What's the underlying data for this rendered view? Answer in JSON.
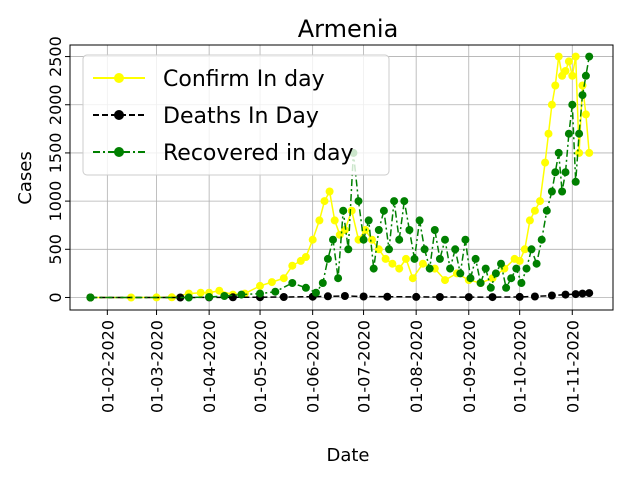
{
  "chart_data": {
    "type": "line",
    "title": "Armenia",
    "xlabel": "Date",
    "ylabel": "Cases",
    "x_tick_labels": [
      "01-02-2020",
      "01-03-2020",
      "01-04-2020",
      "01-05-2020",
      "01-06-2020",
      "01-07-2020",
      "01-08-2020",
      "01-09-2020",
      "01-10-2020",
      "01-11-2020"
    ],
    "x_tick_dates": [
      "2020-02-01",
      "2020-03-01",
      "2020-04-01",
      "2020-05-01",
      "2020-06-01",
      "2020-07-01",
      "2020-08-01",
      "2020-09-01",
      "2020-10-01",
      "2020-11-01"
    ],
    "y_ticks": [
      0,
      500,
      1000,
      1500,
      2000,
      2500
    ],
    "y_tick_labels": [
      "0",
      "500",
      "1000",
      "1500",
      "2000",
      "2500"
    ],
    "xlim": [
      "2020-01-10",
      "2020-11-25"
    ],
    "ylim": [
      -130,
      2620
    ],
    "grid": true,
    "legend_position": "upper-left",
    "series": [
      {
        "name": "Confirm In day",
        "color": "#ffff00",
        "linestyle": "solid",
        "marker": "circle",
        "points": [
          [
            "2020-01-22",
            0
          ],
          [
            "2020-02-15",
            0
          ],
          [
            "2020-03-01",
            1
          ],
          [
            "2020-03-10",
            2
          ],
          [
            "2020-03-20",
            40
          ],
          [
            "2020-03-27",
            50
          ],
          [
            "2020-04-01",
            50
          ],
          [
            "2020-04-07",
            70
          ],
          [
            "2020-04-15",
            30
          ],
          [
            "2020-04-22",
            40
          ],
          [
            "2020-05-01",
            120
          ],
          [
            "2020-05-08",
            160
          ],
          [
            "2020-05-15",
            200
          ],
          [
            "2020-05-20",
            330
          ],
          [
            "2020-05-25",
            380
          ],
          [
            "2020-05-28",
            420
          ],
          [
            "2020-06-01",
            600
          ],
          [
            "2020-06-05",
            800
          ],
          [
            "2020-06-08",
            1000
          ],
          [
            "2020-06-11",
            1100
          ],
          [
            "2020-06-14",
            800
          ],
          [
            "2020-06-17",
            650
          ],
          [
            "2020-06-20",
            700
          ],
          [
            "2020-06-24",
            900
          ],
          [
            "2020-06-28",
            600
          ],
          [
            "2020-07-02",
            700
          ],
          [
            "2020-07-06",
            600
          ],
          [
            "2020-07-10",
            500
          ],
          [
            "2020-07-14",
            400
          ],
          [
            "2020-07-18",
            350
          ],
          [
            "2020-07-22",
            300
          ],
          [
            "2020-07-26",
            400
          ],
          [
            "2020-07-30",
            200
          ],
          [
            "2020-08-05",
            350
          ],
          [
            "2020-08-12",
            300
          ],
          [
            "2020-08-18",
            180
          ],
          [
            "2020-08-25",
            250
          ],
          [
            "2020-09-01",
            180
          ],
          [
            "2020-09-08",
            150
          ],
          [
            "2020-09-15",
            200
          ],
          [
            "2020-09-22",
            300
          ],
          [
            "2020-09-28",
            400
          ],
          [
            "2020-10-01",
            380
          ],
          [
            "2020-10-04",
            500
          ],
          [
            "2020-10-07",
            800
          ],
          [
            "2020-10-10",
            900
          ],
          [
            "2020-10-13",
            1000
          ],
          [
            "2020-10-16",
            1400
          ],
          [
            "2020-10-18",
            1700
          ],
          [
            "2020-10-20",
            2000
          ],
          [
            "2020-10-22",
            2200
          ],
          [
            "2020-10-24",
            2500
          ],
          [
            "2020-10-26",
            2300
          ],
          [
            "2020-10-28",
            2350
          ],
          [
            "2020-10-30",
            2450
          ],
          [
            "2020-11-01",
            2300
          ],
          [
            "2020-11-03",
            2500
          ],
          [
            "2020-11-05",
            1500
          ],
          [
            "2020-11-07",
            2200
          ],
          [
            "2020-11-09",
            1900
          ],
          [
            "2020-11-11",
            1500
          ]
        ]
      },
      {
        "name": "Deaths In Day",
        "color": "#000000",
        "linestyle": "dashed",
        "marker": "circle",
        "points": [
          [
            "2020-01-22",
            0
          ],
          [
            "2020-03-15",
            0
          ],
          [
            "2020-04-01",
            1
          ],
          [
            "2020-04-15",
            2
          ],
          [
            "2020-05-01",
            3
          ],
          [
            "2020-05-15",
            5
          ],
          [
            "2020-06-01",
            8
          ],
          [
            "2020-06-10",
            12
          ],
          [
            "2020-06-20",
            15
          ],
          [
            "2020-07-01",
            10
          ],
          [
            "2020-07-15",
            8
          ],
          [
            "2020-08-01",
            6
          ],
          [
            "2020-08-15",
            5
          ],
          [
            "2020-09-01",
            4
          ],
          [
            "2020-09-15",
            4
          ],
          [
            "2020-10-01",
            6
          ],
          [
            "2020-10-10",
            10
          ],
          [
            "2020-10-20",
            20
          ],
          [
            "2020-10-28",
            30
          ],
          [
            "2020-11-03",
            35
          ],
          [
            "2020-11-07",
            40
          ],
          [
            "2020-11-11",
            45
          ]
        ]
      },
      {
        "name": "Recovered in day",
        "color": "#008000",
        "linestyle": "dashdot",
        "marker": "circle",
        "points": [
          [
            "2020-01-22",
            0
          ],
          [
            "2020-03-20",
            0
          ],
          [
            "2020-04-01",
            5
          ],
          [
            "2020-04-10",
            15
          ],
          [
            "2020-04-20",
            30
          ],
          [
            "2020-05-01",
            40
          ],
          [
            "2020-05-10",
            60
          ],
          [
            "2020-05-20",
            150
          ],
          [
            "2020-05-28",
            100
          ],
          [
            "2020-06-03",
            50
          ],
          [
            "2020-06-07",
            150
          ],
          [
            "2020-06-10",
            400
          ],
          [
            "2020-06-13",
            600
          ],
          [
            "2020-06-16",
            200
          ],
          [
            "2020-06-19",
            900
          ],
          [
            "2020-06-22",
            500
          ],
          [
            "2020-06-25",
            1500
          ],
          [
            "2020-06-28",
            1000
          ],
          [
            "2020-07-01",
            600
          ],
          [
            "2020-07-04",
            800
          ],
          [
            "2020-07-07",
            300
          ],
          [
            "2020-07-10",
            700
          ],
          [
            "2020-07-13",
            900
          ],
          [
            "2020-07-16",
            500
          ],
          [
            "2020-07-19",
            1000
          ],
          [
            "2020-07-22",
            600
          ],
          [
            "2020-07-25",
            1000
          ],
          [
            "2020-07-28",
            700
          ],
          [
            "2020-07-31",
            400
          ],
          [
            "2020-08-03",
            800
          ],
          [
            "2020-08-06",
            500
          ],
          [
            "2020-08-09",
            300
          ],
          [
            "2020-08-12",
            700
          ],
          [
            "2020-08-15",
            400
          ],
          [
            "2020-08-18",
            600
          ],
          [
            "2020-08-21",
            300
          ],
          [
            "2020-08-24",
            500
          ],
          [
            "2020-08-27",
            250
          ],
          [
            "2020-08-30",
            600
          ],
          [
            "2020-09-02",
            200
          ],
          [
            "2020-09-05",
            400
          ],
          [
            "2020-09-08",
            150
          ],
          [
            "2020-09-11",
            300
          ],
          [
            "2020-09-14",
            100
          ],
          [
            "2020-09-17",
            250
          ],
          [
            "2020-09-20",
            350
          ],
          [
            "2020-09-23",
            100
          ],
          [
            "2020-09-26",
            200
          ],
          [
            "2020-09-29",
            300
          ],
          [
            "2020-10-02",
            150
          ],
          [
            "2020-10-05",
            300
          ],
          [
            "2020-10-08",
            500
          ],
          [
            "2020-10-11",
            350
          ],
          [
            "2020-10-14",
            600
          ],
          [
            "2020-10-17",
            900
          ],
          [
            "2020-10-20",
            1100
          ],
          [
            "2020-10-22",
            1300
          ],
          [
            "2020-10-24",
            1500
          ],
          [
            "2020-10-26",
            1100
          ],
          [
            "2020-10-28",
            1300
          ],
          [
            "2020-10-30",
            1700
          ],
          [
            "2020-11-01",
            2000
          ],
          [
            "2020-11-03",
            1200
          ],
          [
            "2020-11-05",
            1700
          ],
          [
            "2020-11-07",
            2100
          ],
          [
            "2020-11-09",
            2300
          ],
          [
            "2020-11-11",
            2500
          ]
        ]
      }
    ]
  }
}
